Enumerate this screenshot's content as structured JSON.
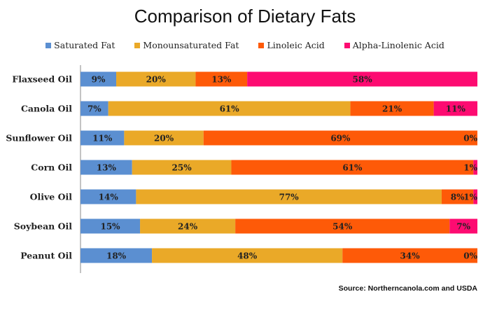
{
  "chart_data": {
    "type": "bar",
    "orientation": "horizontal",
    "stacked": true,
    "title": "Comparison of Dietary Fats",
    "source": "Source: Northerncanola.com and USDA",
    "categories": [
      "Flaxseed Oil",
      "Canola Oil",
      "Sunflower Oil",
      "Corn Oil",
      "Olive Oil",
      "Soybean Oil",
      "Peanut Oil"
    ],
    "series": [
      {
        "name": "Saturated Fat",
        "color": "#5b8fd1",
        "values": [
          9,
          7,
          11,
          13,
          14,
          15,
          18
        ],
        "labels": [
          "9%",
          "7%",
          "11%",
          "13%",
          "14%",
          "15%",
          "18%"
        ]
      },
      {
        "name": "Monounsaturated Fat",
        "color": "#eaa928",
        "values": [
          20,
          61,
          20,
          25,
          77,
          24,
          48
        ],
        "labels": [
          "20%",
          "61%",
          "20%",
          "25%",
          "77%",
          "24%",
          "48%"
        ]
      },
      {
        "name": "Linoleic Acid",
        "color": "#fe5a08",
        "values": [
          13,
          21,
          69,
          61,
          8,
          54,
          34
        ],
        "labels": [
          "13%",
          "21%",
          "69%",
          "61%",
          "8%",
          "54%",
          "34%"
        ]
      },
      {
        "name": "Alpha-Linolenic Acid",
        "color": "#fd0b71",
        "values": [
          58,
          11,
          0,
          1,
          1,
          7,
          0
        ],
        "labels": [
          "58%",
          "11%",
          "0%",
          "1%",
          "1%",
          "7%",
          "0%"
        ]
      }
    ],
    "xlim": [
      0,
      100
    ],
    "legend_position": "top",
    "grid": false
  }
}
